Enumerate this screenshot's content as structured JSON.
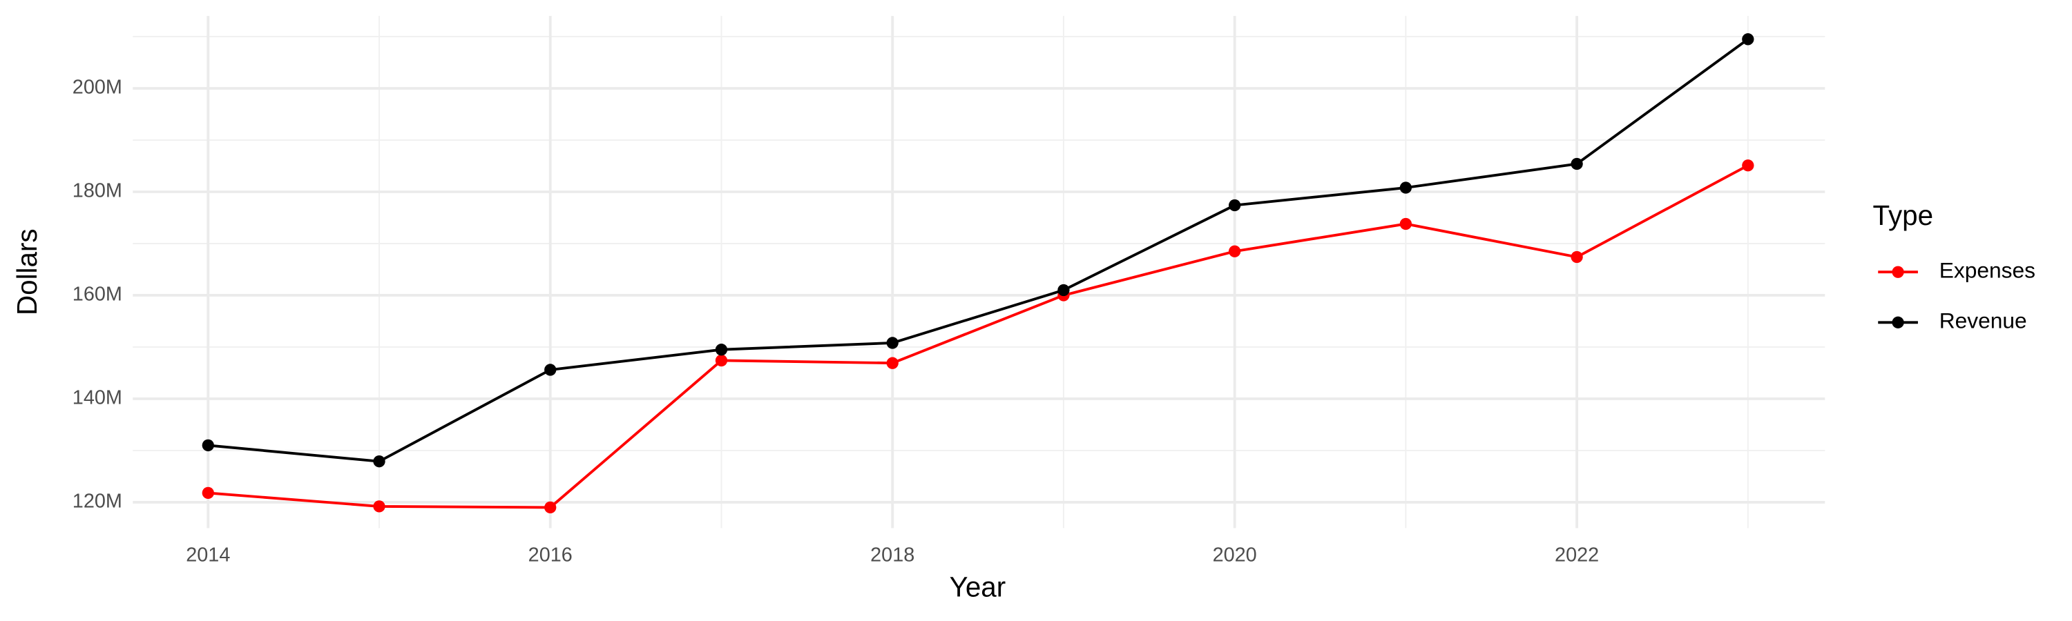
{
  "chart_data": {
    "type": "line",
    "xlabel": "Year",
    "ylabel": "Dollars",
    "legend_title": "Type",
    "legend": "right",
    "grid": true,
    "x": [
      2014,
      2015,
      2016,
      2017,
      2018,
      2019,
      2020,
      2021,
      2022,
      2023
    ],
    "series": [
      {
        "name": "Expenses",
        "color": "#ff0000",
        "values": [
          121800000,
          119200000,
          119000000,
          147400000,
          146900000,
          160000000,
          168500000,
          173800000,
          167400000,
          185100000
        ]
      },
      {
        "name": "Revenue",
        "color": "#000000",
        "values": [
          131000000,
          127900000,
          145600000,
          149500000,
          150800000,
          161000000,
          177400000,
          180800000,
          185400000,
          209500000
        ]
      }
    ],
    "xlim": [
      2013.56,
      2023.45
    ],
    "xticks": [
      2014,
      2016,
      2018,
      2020,
      2022
    ],
    "ylim": [
      115000000,
      214000000
    ],
    "yticks": [
      {
        "value": 120000000,
        "label": "120M"
      },
      {
        "value": 140000000,
        "label": "140M"
      },
      {
        "value": 160000000,
        "label": "160M"
      },
      {
        "value": 180000000,
        "label": "180M"
      },
      {
        "value": 200000000,
        "label": "200M"
      }
    ]
  }
}
